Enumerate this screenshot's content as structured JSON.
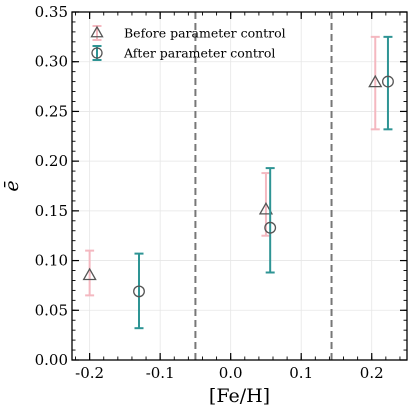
{
  "chart_data": {
    "type": "scatter",
    "xlabel": "[Fe/H]",
    "ylabel": "ē",
    "xlim": [
      -0.225,
      0.25
    ],
    "ylim": [
      0.0,
      0.35
    ],
    "xticks": [
      -0.2,
      -0.1,
      0.0,
      0.1,
      0.2
    ],
    "xtick_labels": [
      "-0.2",
      "-0.1",
      "0.0",
      "0.1",
      "0.2"
    ],
    "yticks": [
      0.0,
      0.05,
      0.1,
      0.15,
      0.2,
      0.25,
      0.3,
      0.35
    ],
    "ytick_labels": [
      "0.00",
      "0.05",
      "0.10",
      "0.15",
      "0.20",
      "0.25",
      "0.30",
      "0.35"
    ],
    "grid": true,
    "legend_position": "top-left",
    "vertical_lines": [
      -0.05,
      0.143
    ],
    "series": [
      {
        "name": "Before parameter control",
        "marker": "triangle",
        "marker_color": "#555555",
        "error_color": "#f4b8c0",
        "points": [
          {
            "x": -0.2,
            "y": 0.085,
            "yerr_low": 0.065,
            "yerr_high": 0.11
          },
          {
            "x": 0.05,
            "y": 0.151,
            "yerr_low": 0.125,
            "yerr_high": 0.188
          },
          {
            "x": 0.205,
            "y": 0.279,
            "yerr_low": 0.232,
            "yerr_high": 0.325
          }
        ]
      },
      {
        "name": "After parameter control",
        "marker": "circle",
        "marker_color": "#555555",
        "error_color": "#2e9494",
        "points": [
          {
            "x": -0.13,
            "y": 0.069,
            "yerr_low": 0.032,
            "yerr_high": 0.107
          },
          {
            "x": 0.056,
            "y": 0.133,
            "yerr_low": 0.088,
            "yerr_high": 0.193
          },
          {
            "x": 0.223,
            "y": 0.28,
            "yerr_low": 0.232,
            "yerr_high": 0.325
          }
        ]
      }
    ]
  }
}
